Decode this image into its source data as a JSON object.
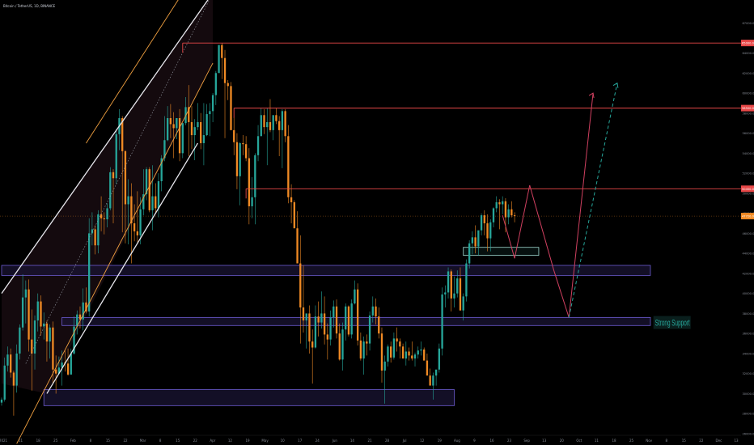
{
  "header": {
    "symbol": "Bitcoin / TetherUS, 1D, BINANCE",
    "currency": "USDT"
  },
  "chart_data": {
    "type": "candlestick",
    "title": "",
    "colors": {
      "background": "#000000",
      "up": "#26a69a",
      "down": "#f08a24",
      "resistance": "#e84848",
      "zone_border": "#6c5bd0",
      "zone_fill": "#1a1433",
      "channel_outer": "#f0a040",
      "channel_inner": "#e8e8ee",
      "projection": "#d04060",
      "projection_dashed": "#26a69a"
    },
    "price_axis": {
      "min": 26000,
      "max": 68000,
      "ticks": [
        "67000.00",
        "64000.00",
        "62000.00",
        "60000.00",
        "58000.00",
        "56000.00",
        "54000.00",
        "52000.00",
        "50000.00",
        "48000.00",
        "46000.00",
        "44000.00",
        "42000.00",
        "40000.00",
        "38000.00",
        "36000.00",
        "34000.00",
        "32000.00",
        "30000.00",
        "28000.00",
        "26000.00"
      ]
    },
    "time_axis": {
      "labels": [
        "2021",
        "11",
        "18",
        "25",
        "Feb",
        "8",
        "15",
        "22",
        "Mar",
        "8",
        "15",
        "22",
        "Apr",
        "12",
        "19",
        "May",
        "10",
        "17",
        "24",
        "Jun",
        "14",
        "21",
        "28",
        "Jul",
        "12",
        "19",
        "Aug",
        "9",
        "16",
        "23",
        "Sep",
        "13",
        "20",
        "Oct",
        "11",
        "18",
        "25",
        "Nov",
        "8",
        "15",
        "22",
        "Dec",
        "13"
      ]
    },
    "price_labels": [
      {
        "value": 65000,
        "text": "65000.00"
      },
      {
        "value": 58500,
        "text": "58500.00"
      },
      {
        "value": 50450,
        "text": "50450.00"
      },
      {
        "value": 47720,
        "text": "47720.00"
      }
    ],
    "current_price": 47720,
    "resistance_lines": [
      {
        "value": 65000,
        "from_day": 60
      },
      {
        "value": 58500,
        "from_day": 77
      },
      {
        "value": 50450,
        "from_day": 81
      }
    ],
    "zones": [
      {
        "low": 41800,
        "high": 42800,
        "from_day": 0,
        "to_day": 215
      },
      {
        "low": 36800,
        "high": 37600,
        "from_day": 20,
        "to_day": 215
      },
      {
        "low": 28800,
        "high": 30400,
        "from_day": 14,
        "to_day": 150
      }
    ],
    "small_box": {
      "low": 43800,
      "high": 44600,
      "from_day": 153,
      "to_day": 178
    },
    "annotation": {
      "text": "Strong Support",
      "value": 37100,
      "day": 216
    },
    "channel": {
      "inner_lower": [
        [
          15,
          30000
        ],
        [
          65,
          55000
        ]
      ],
      "inner_upper": [
        [
          0,
          40000
        ],
        [
          70,
          70000
        ]
      ],
      "outer_lower": [
        [
          5,
          25000
        ],
        [
          70,
          63000
        ]
      ],
      "outer_upper": [
        [
          28,
          55000
        ],
        [
          60,
          70000
        ]
      ]
    },
    "projection_solid": [
      [
        166,
        47800
      ],
      [
        170,
        43500
      ],
      [
        175,
        50800
      ],
      [
        183,
        42300
      ],
      [
        188,
        37600
      ],
      [
        196,
        60000
      ]
    ],
    "projection_dashed": [
      [
        188,
        37600
      ],
      [
        204,
        61000
      ]
    ],
    "candles_ohlc": [
      [
        29100,
        29600,
        28800,
        29400
      ],
      [
        29400,
        33600,
        29200,
        32800
      ],
      [
        32800,
        34700,
        32200,
        33900
      ],
      [
        33900,
        34500,
        31600,
        32100
      ],
      [
        32100,
        32300,
        27800,
        30800
      ],
      [
        30800,
        34900,
        30100,
        34000
      ],
      [
        34000,
        36900,
        33400,
        36600
      ],
      [
        36600,
        41900,
        36300,
        39600
      ],
      [
        39600,
        41300,
        37000,
        40400
      ],
      [
        40400,
        41400,
        34200,
        35400
      ],
      [
        35400,
        38400,
        30300,
        34000
      ],
      [
        34000,
        37800,
        32400,
        37300
      ],
      [
        37300,
        40000,
        36200,
        39200
      ],
      [
        39200,
        39800,
        35800,
        36700
      ],
      [
        36700,
        38100,
        35400,
        37000
      ],
      [
        37000,
        37300,
        33200,
        35200
      ],
      [
        35200,
        36900,
        33500,
        36600
      ],
      [
        36600,
        37200,
        31000,
        32400
      ],
      [
        32400,
        33800,
        30000,
        32000
      ],
      [
        32000,
        33700,
        31900,
        32600
      ],
      [
        32600,
        34300,
        30800,
        33100
      ],
      [
        33100,
        34300,
        32200,
        33000
      ],
      [
        33000,
        34500,
        31800,
        31900
      ],
      [
        31900,
        34500,
        32000,
        34000
      ],
      [
        34000,
        37700,
        33900,
        36700
      ],
      [
        36700,
        38300,
        35900,
        37900
      ],
      [
        37900,
        38700,
        36500,
        37400
      ],
      [
        37400,
        40500,
        36300,
        39100
      ],
      [
        39100,
        40600,
        38000,
        38200
      ],
      [
        38200,
        47500,
        37700,
        46000
      ],
      [
        46000,
        48100,
        44800,
        46400
      ],
      [
        46400,
        46800,
        43900,
        44800
      ],
      [
        44800,
        48300,
        44000,
        47900
      ],
      [
        47900,
        49700,
        46200,
        47500
      ],
      [
        47500,
        48100,
        45900,
        47400
      ],
      [
        47400,
        49000,
        46600,
        48500
      ],
      [
        48500,
        52600,
        48300,
        52100
      ],
      [
        52100,
        52400,
        47000,
        51500
      ],
      [
        51500,
        56400,
        50900,
        55900
      ],
      [
        55900,
        58400,
        54300,
        57500
      ],
      [
        57500,
        57700,
        46100,
        54200
      ],
      [
        54200,
        54300,
        45000,
        48900
      ],
      [
        48900,
        51400,
        44900,
        49700
      ],
      [
        49700,
        51000,
        43000,
        47000
      ],
      [
        47000,
        48900,
        45200,
        46200
      ],
      [
        46200,
        50200,
        45100,
        45800
      ],
      [
        45800,
        49600,
        44900,
        48400
      ],
      [
        48400,
        52400,
        47800,
        49900
      ],
      [
        49900,
        52600,
        49300,
        52400
      ],
      [
        52400,
        52600,
        48100,
        48300
      ],
      [
        48300,
        52800,
        46300,
        49700
      ],
      [
        49700,
        51000,
        48100,
        48500
      ],
      [
        48500,
        52000,
        47600,
        51200
      ],
      [
        51200,
        53800,
        50200,
        53500
      ],
      [
        53500,
        57700,
        53200,
        55300
      ],
      [
        55300,
        58700,
        55200,
        57500
      ],
      [
        57500,
        58900,
        55500,
        56900
      ],
      [
        56900,
        58100,
        53500,
        56500
      ],
      [
        56500,
        56900,
        55400,
        57500
      ],
      [
        57500,
        58400,
        53200,
        54000
      ],
      [
        54000,
        57000,
        53500,
        57000
      ],
      [
        57000,
        59600,
        56800,
        58600
      ],
      [
        58600,
        60800,
        53700,
        57100
      ],
      [
        57100,
        58700,
        54400,
        55800
      ],
      [
        55800,
        57400,
        53300,
        56600
      ],
      [
        56600,
        59000,
        56300,
        57100
      ],
      [
        57100,
        58000,
        54400,
        55000
      ],
      [
        55000,
        59000,
        52800,
        55800
      ],
      [
        55800,
        58900,
        55700,
        57900
      ],
      [
        57900,
        59000,
        55700,
        58200
      ],
      [
        58200,
        60000,
        57100,
        59800
      ],
      [
        59800,
        62200,
        58800,
        62000
      ],
      [
        62000,
        63700,
        62300,
        64800
      ],
      [
        64800,
        65000,
        61400,
        63500
      ],
      [
        63500,
        64300,
        55500,
        61000
      ],
      [
        61000,
        61300,
        59300,
        60700
      ],
      [
        60700,
        61100,
        58400,
        56300
      ],
      [
        56300,
        57600,
        53800,
        55100
      ],
      [
        55100,
        56000,
        50400,
        51700
      ],
      [
        51700,
        55100,
        48800,
        55000
      ],
      [
        55000,
        55800,
        53800,
        54900
      ],
      [
        54900,
        55700,
        53200,
        53500
      ],
      [
        53500,
        54500,
        46900,
        48700
      ],
      [
        48700,
        51600,
        47500,
        49600
      ],
      [
        49600,
        54000,
        46900,
        53800
      ],
      [
        53800,
        56800,
        53200,
        55700
      ],
      [
        55700,
        58500,
        55700,
        57800
      ],
      [
        57800,
        58400,
        55900,
        56600
      ],
      [
        56600,
        58500,
        52800,
        57100
      ],
      [
        57100,
        59400,
        56100,
        56300
      ],
      [
        56300,
        57500,
        55300,
        57800
      ],
      [
        57800,
        58500,
        56900,
        57200
      ],
      [
        57200,
        57700,
        53700,
        56300
      ],
      [
        56300,
        58400,
        52500,
        58200
      ],
      [
        58200,
        58400,
        55100,
        55700
      ],
      [
        55700,
        56800,
        49000,
        49600
      ],
      [
        49600,
        50900,
        47000,
        49100
      ],
      [
        49100,
        49300,
        46600,
        46500
      ],
      [
        46500,
        48200,
        44500,
        43000
      ],
      [
        43000,
        45800,
        35000,
        38600
      ],
      [
        38600,
        42800,
        36100,
        37300
      ],
      [
        37300,
        38000,
        34500,
        38000
      ],
      [
        38000,
        38800,
        34000,
        35200
      ],
      [
        35200,
        36400,
        31000,
        34600
      ],
      [
        34600,
        38800,
        34500,
        37700
      ],
      [
        37700,
        39200,
        35700,
        37100
      ],
      [
        37100,
        40200,
        36500,
        38000
      ],
      [
        38000,
        39700,
        34900,
        35900
      ],
      [
        35900,
        37000,
        33400,
        35400
      ],
      [
        35400,
        38300,
        34800,
        37600
      ],
      [
        37600,
        39300,
        36600,
        38700
      ],
      [
        38700,
        39400,
        35500,
        36000
      ],
      [
        36000,
        37000,
        33300,
        33400
      ],
      [
        33400,
        37100,
        32300,
        36400
      ],
      [
        36400,
        39000,
        35300,
        38700
      ],
      [
        38700,
        38800,
        35700,
        35900
      ],
      [
        35900,
        39400,
        35500,
        39000
      ],
      [
        39000,
        41300,
        38900,
        40400
      ],
      [
        40400,
        41000,
        34800,
        35300
      ],
      [
        35300,
        36100,
        33300,
        33500
      ],
      [
        33500,
        35700,
        31900,
        35200
      ],
      [
        35200,
        35900,
        33800,
        35000
      ],
      [
        35000,
        38200,
        34300,
        37800
      ],
      [
        37800,
        39700,
        37100,
        38700
      ],
      [
        38700,
        39500,
        36900,
        37700
      ],
      [
        37700,
        38600,
        35500,
        36000
      ],
      [
        36000,
        36600,
        31100,
        32300
      ],
      [
        32300,
        33800,
        29000,
        33200
      ],
      [
        33200,
        34900,
        32700,
        34700
      ],
      [
        34700,
        35200,
        33100,
        33600
      ],
      [
        33600,
        36100,
        33400,
        35500
      ],
      [
        35500,
        36600,
        34200,
        35200
      ],
      [
        35200,
        35500,
        33500,
        34700
      ],
      [
        34700,
        35000,
        33800,
        33500
      ],
      [
        33500,
        35200,
        32800,
        34200
      ],
      [
        34200,
        34600,
        33300,
        33800
      ],
      [
        33800,
        35200,
        33300,
        33500
      ],
      [
        33500,
        34100,
        32700,
        33900
      ],
      [
        33900,
        34700,
        33500,
        34300
      ],
      [
        34300,
        35200,
        33800,
        34400
      ],
      [
        34400,
        34600,
        33900,
        33300
      ],
      [
        33300,
        34000,
        32100,
        31800
      ],
      [
        31800,
        32500,
        31100,
        30800
      ],
      [
        30800,
        32100,
        29400,
        31800
      ],
      [
        31800,
        32200,
        30800,
        32400
      ],
      [
        32400,
        35000,
        32100,
        34500
      ],
      [
        34500,
        40600,
        33800,
        39900
      ],
      [
        39900,
        40800,
        38600,
        40100
      ],
      [
        40100,
        42600,
        39500,
        42200
      ],
      [
        42200,
        42400,
        38200,
        39500
      ],
      [
        39500,
        41700,
        38600,
        40000
      ],
      [
        40000,
        42300,
        39600,
        41500
      ],
      [
        41500,
        42600,
        40900,
        38300
      ],
      [
        38300,
        40000,
        37300,
        39700
      ],
      [
        39700,
        43400,
        39200,
        43000
      ],
      [
        43000,
        45300,
        42500,
        45000
      ],
      [
        45000,
        46200,
        43900,
        45600
      ],
      [
        45600,
        46800,
        44000,
        44700
      ],
      [
        44700,
        45500,
        43800,
        46300
      ],
      [
        46300,
        48000,
        45800,
        47800
      ],
      [
        47800,
        48300,
        45800,
        47000
      ],
      [
        47000,
        47900,
        44200,
        45500
      ],
      [
        45500,
        47400,
        44200,
        47100
      ],
      [
        47100,
        48600,
        46600,
        48500
      ],
      [
        48500,
        49700,
        48100,
        49100
      ],
      [
        49100,
        49400,
        46400,
        48900
      ],
      [
        48900,
        49700,
        47900,
        49200
      ],
      [
        49200,
        49500,
        46100,
        47600
      ],
      [
        47600,
        48900,
        46900,
        48400
      ],
      [
        48400,
        49200,
        47600,
        47800
      ],
      [
        47800,
        48100,
        47100,
        47720
      ]
    ]
  }
}
